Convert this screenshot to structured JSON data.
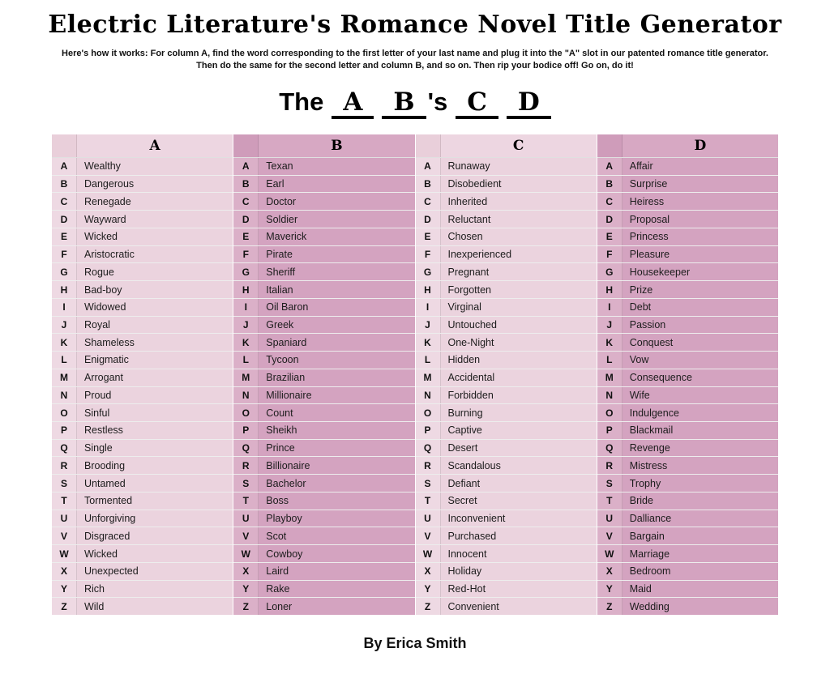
{
  "title": "Electric Literature's Romance Novel Title Generator",
  "instructions": {
    "line1": "Here's how it works: For column A, find the word corresponding to the first letter of your last name and plug it into the \"A\" slot in our patented romance title generator.",
    "line2": "Then do the same for the second letter and column B, and so on. Then rip your bodice off! Go on, do it!"
  },
  "template_line": {
    "prefix": "The",
    "possessive": "'s",
    "slots": [
      "A",
      "B",
      "C",
      "D"
    ]
  },
  "byline": "By Erica Smith",
  "colors": {
    "light_cell": "#ebd3de",
    "light_letter_cell": "#eed9e3",
    "dark_cell": "#d4a3c0",
    "dark_letter_cell": "#dbb0c8",
    "text": "#1c1c1c",
    "background": "#ffffff"
  },
  "table": {
    "letters": [
      "A",
      "B",
      "C",
      "D",
      "E",
      "F",
      "G",
      "H",
      "I",
      "J",
      "K",
      "L",
      "M",
      "N",
      "O",
      "P",
      "Q",
      "R",
      "S",
      "T",
      "U",
      "V",
      "W",
      "X",
      "Y",
      "Z"
    ],
    "columns": [
      {
        "header": "A",
        "shade": "light",
        "words": [
          "Wealthy",
          "Dangerous",
          "Renegade",
          "Wayward",
          "Wicked",
          "Aristocratic",
          "Rogue",
          "Bad-boy",
          "Widowed",
          "Royal",
          "Shameless",
          "Enigmatic",
          "Arrogant",
          "Proud",
          "Sinful",
          "Restless",
          "Single",
          "Brooding",
          "Untamed",
          "Tormented",
          "Unforgiving",
          "Disgraced",
          "Wicked",
          "Unexpected",
          "Rich",
          "Wild"
        ]
      },
      {
        "header": "B",
        "shade": "dark",
        "words": [
          "Texan",
          "Earl",
          "Doctor",
          "Soldier",
          "Maverick",
          "Pirate",
          "Sheriff",
          "Italian",
          "Oil Baron",
          "Greek",
          "Spaniard",
          "Tycoon",
          "Brazilian",
          "Millionaire",
          "Count",
          "Sheikh",
          "Prince",
          "Billionaire",
          "Bachelor",
          "Boss",
          "Playboy",
          "Scot",
          "Cowboy",
          "Laird",
          "Rake",
          "Loner"
        ]
      },
      {
        "header": "C",
        "shade": "light",
        "words": [
          "Runaway",
          "Disobedient",
          "Inherited",
          "Reluctant",
          "Chosen",
          "Inexperienced",
          "Pregnant",
          "Forgotten",
          "Virginal",
          "Untouched",
          "One-Night",
          "Hidden",
          "Accidental",
          "Forbidden",
          "Burning",
          "Captive",
          "Desert",
          "Scandalous",
          "Defiant",
          "Secret",
          "Inconvenient",
          "Purchased",
          "Innocent",
          "Holiday",
          "Red-Hot",
          "Convenient"
        ]
      },
      {
        "header": "D",
        "shade": "dark",
        "words": [
          "Affair",
          "Surprise",
          "Heiress",
          "Proposal",
          "Princess",
          "Pleasure",
          "Housekeeper",
          "Prize",
          "Debt",
          "Passion",
          "Conquest",
          "Vow",
          "Consequence",
          "Wife",
          "Indulgence",
          "Blackmail",
          "Revenge",
          "Mistress",
          "Trophy",
          "Bride",
          "Dalliance",
          "Bargain",
          "Marriage",
          "Bedroom",
          "Maid",
          "Wedding"
        ]
      }
    ]
  }
}
